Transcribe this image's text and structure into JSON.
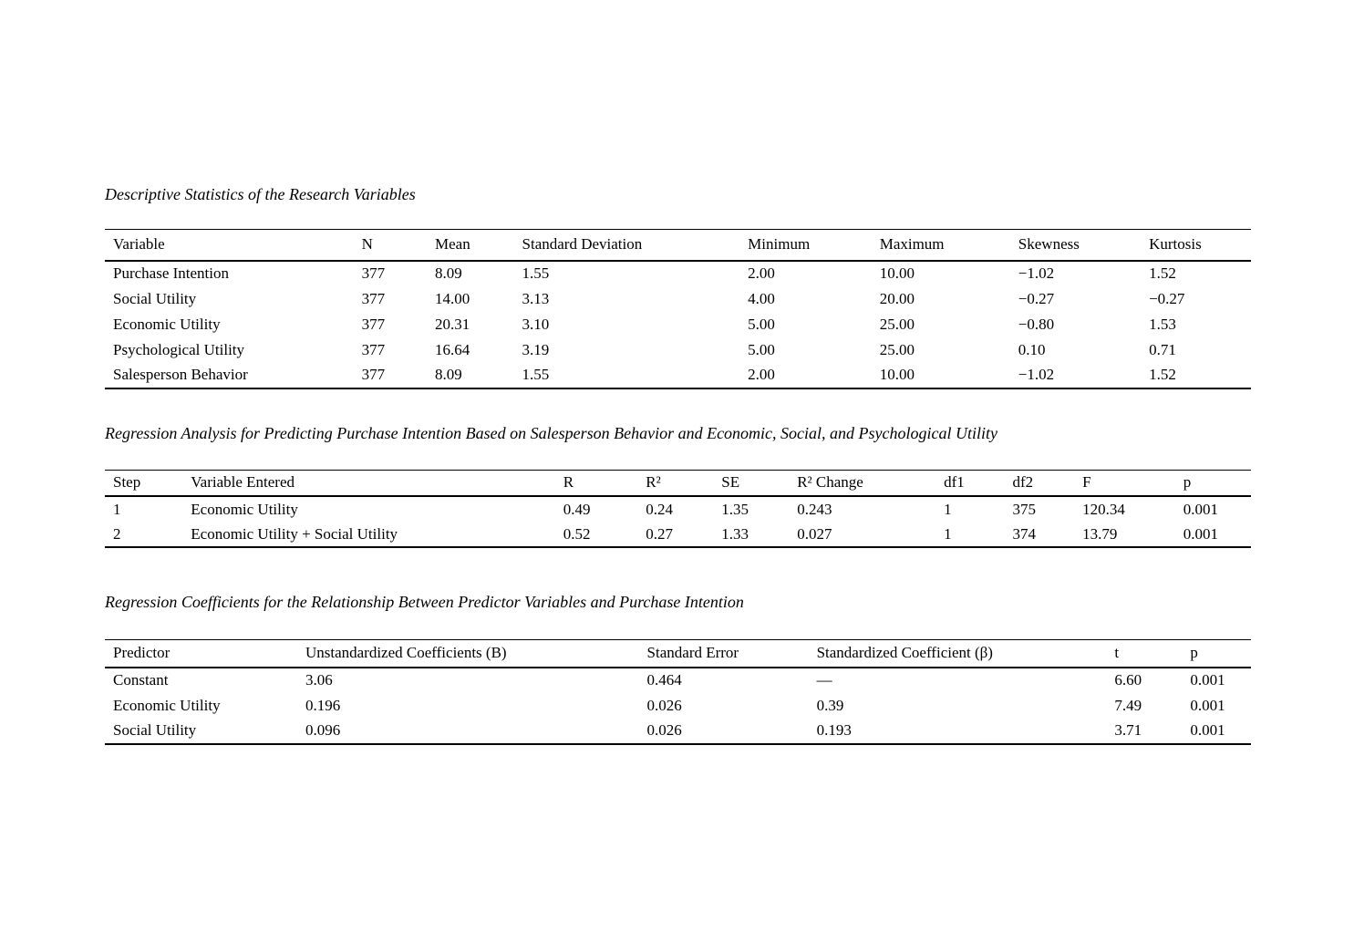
{
  "page": {
    "background_color": "#ffffff",
    "text_color": "#000000"
  },
  "tables": [
    {
      "title": "Descriptive Statistics of the Research Variables",
      "columns": [
        "Variable",
        "N",
        "Mean",
        "Standard Deviation",
        "Minimum",
        "Maximum",
        "Skewness",
        "Kurtosis"
      ],
      "rows": [
        [
          "Purchase Intention",
          "377",
          "8.09",
          "1.55",
          "2.00",
          "10.00",
          "−1.02",
          "1.52"
        ],
        [
          "Social Utility",
          "377",
          "14.00",
          "3.13",
          "4.00",
          "20.00",
          "−0.27",
          "−0.27"
        ],
        [
          "Economic Utility",
          "377",
          "20.31",
          "3.10",
          "5.00",
          "25.00",
          "−0.80",
          "1.53"
        ],
        [
          "Psychological Utility",
          "377",
          "16.64",
          "3.19",
          "5.00",
          "25.00",
          "0.10",
          "0.71"
        ],
        [
          "Salesperson Behavior",
          "377",
          "8.09",
          "1.55",
          "2.00",
          "10.00",
          "−1.02",
          "1.52"
        ]
      ]
    },
    {
      "title": "Regression Analysis for Predicting Purchase Intention Based on Salesperson Behavior and Economic, Social, and Psychological Utility",
      "columns": [
        "Step",
        "Variable Entered",
        "R",
        "R²",
        "SE",
        "R² Change",
        "df1",
        "df2",
        "F",
        "p"
      ],
      "rows": [
        [
          "1",
          "Economic Utility",
          "0.49",
          "0.24",
          "1.35",
          "0.243",
          "1",
          "375",
          "120.34",
          "0.001"
        ],
        [
          "2",
          "Economic Utility + Social Utility",
          "0.52",
          "0.27",
          "1.33",
          "0.027",
          "1",
          "374",
          "13.79",
          "0.001"
        ]
      ]
    },
    {
      "title": "Regression Coefficients for the Relationship Between Predictor Variables and Purchase Intention",
      "columns": [
        "Predictor",
        "Unstandardized Coefficients (B)",
        "Standard Error",
        "Standardized Coefficient (β)",
        "t",
        "p"
      ],
      "rows": [
        [
          "Constant",
          "3.06",
          "0.464",
          "—",
          "6.60",
          "0.001"
        ],
        [
          "Economic Utility",
          "0.196",
          "0.026",
          "0.39",
          "7.49",
          "0.001"
        ],
        [
          "Social Utility",
          "0.096",
          "0.026",
          "0.193",
          "3.71",
          "0.001"
        ]
      ]
    }
  ]
}
